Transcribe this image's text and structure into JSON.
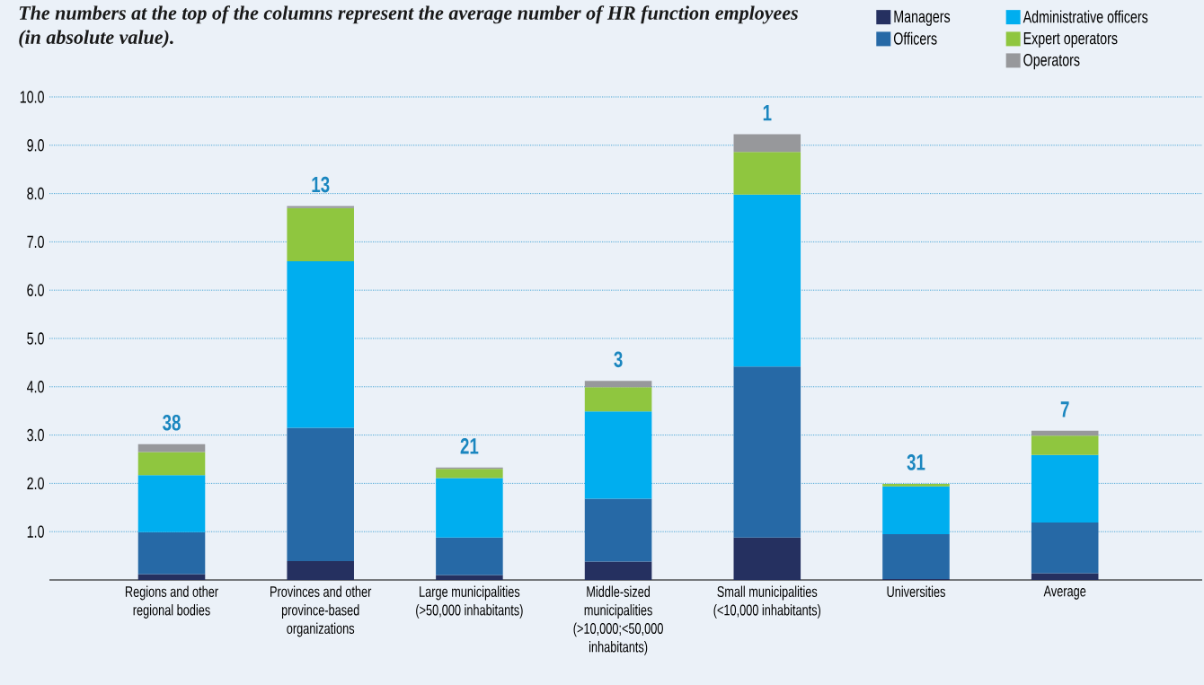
{
  "chart_data": {
    "type": "bar",
    "stacked": true,
    "title": "The numbers at the top of the columns represent the average number of HR function employees (in absolute value).",
    "categories": [
      "Regions and other regional bodies",
      "Provinces and other province-based organizations",
      "Large municipalities (>50,000 inhabitants)",
      "Middle-sized municipalities (>10,000;<50,000 inhabitants)",
      "Small municipalities (<10,000 inhabitants)",
      "Universities",
      "Average"
    ],
    "series": [
      {
        "name": "Managers",
        "color": "#253060",
        "values": [
          0.12,
          0.39,
          0.1,
          0.38,
          0.88,
          0.02,
          0.14
        ]
      },
      {
        "name": "Officers",
        "color": "#2669a6",
        "values": [
          0.87,
          2.76,
          0.78,
          1.3,
          3.54,
          0.93,
          1.05
        ]
      },
      {
        "name": "Administrative officers",
        "color": "#00aeef",
        "values": [
          1.18,
          3.45,
          1.23,
          1.81,
          3.56,
          0.99,
          1.4
        ]
      },
      {
        "name": "Expert operators",
        "color": "#8fc63f",
        "values": [
          0.48,
          1.1,
          0.19,
          0.5,
          0.88,
          0.05,
          0.4
        ]
      },
      {
        "name": "Operators",
        "color": "#97989b",
        "values": [
          0.16,
          0.04,
          0.03,
          0.13,
          0.37,
          null,
          0.1
        ]
      }
    ],
    "ylim": [
      0,
      10
    ],
    "yticks": [
      {
        "value": 1,
        "label": "1.0"
      },
      {
        "value": 2,
        "label": "2.0"
      },
      {
        "value": 3,
        "label": "3.0"
      },
      {
        "value": 4,
        "label": "4.0"
      },
      {
        "value": 5,
        "label": "5.0"
      },
      {
        "value": 6,
        "label": "6.0"
      },
      {
        "value": 7,
        "label": "7.0"
      },
      {
        "value": 8,
        "label": "8.0"
      },
      {
        "value": 9,
        "label": "9.0"
      },
      {
        "value": 10,
        "label": "10.0"
      }
    ],
    "grid": "y",
    "legend": "top right",
    "annotations": [
      {
        "text": "38",
        "x": "Regions and other regional bodies",
        "y": 2.81
      },
      {
        "text": "13",
        "x": "Provinces and other province-based organizations",
        "y": 7.74
      },
      {
        "text": "21",
        "x": "Large municipalities (>50,000 inhabitants)",
        "y": 2.33
      },
      {
        "text": "3",
        "x": "Middle-sized municipalities (>10,000;<50,000 inhabitants)",
        "y": 4.12
      },
      {
        "text": "1",
        "x": "Small municipalities (<10,000 inhabitants)",
        "y": 9.23
      },
      {
        "text": "31",
        "x": "Universities",
        "y": 1.99
      },
      {
        "text": "7",
        "x": "Average",
        "y": 3.09
      }
    ]
  }
}
